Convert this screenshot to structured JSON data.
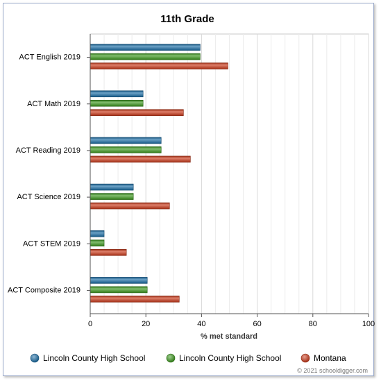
{
  "chart_data": {
    "type": "bar",
    "orientation": "horizontal",
    "title": "11th Grade",
    "xlabel": "% met standard",
    "ylabel": "",
    "xlim": [
      0,
      100
    ],
    "xticks": [
      "0",
      "20",
      "40",
      "60",
      "80",
      "100"
    ],
    "grid": true,
    "legend_position": "bottom",
    "categories": [
      "ACT English 2019",
      "ACT Math 2019",
      "ACT Reading 2019",
      "ACT Science 2019",
      "ACT STEM 2019",
      "ACT Composite 2019"
    ],
    "series": [
      {
        "name": "Lincoln County High School",
        "color": "#1c6fa8",
        "values": [
          39.5,
          19,
          25.5,
          15.5,
          5,
          20.5
        ]
      },
      {
        "name": "Lincoln County High School",
        "color": "#3d9a1e",
        "values": [
          39.5,
          19,
          25.5,
          15.5,
          5,
          20.5
        ]
      },
      {
        "name": "Montana",
        "color": "#cc3a1a",
        "values": [
          49.5,
          33.5,
          36,
          28.5,
          13,
          32
        ]
      }
    ]
  },
  "footer": {
    "copyright": "© 2021 schooldigger.com"
  }
}
